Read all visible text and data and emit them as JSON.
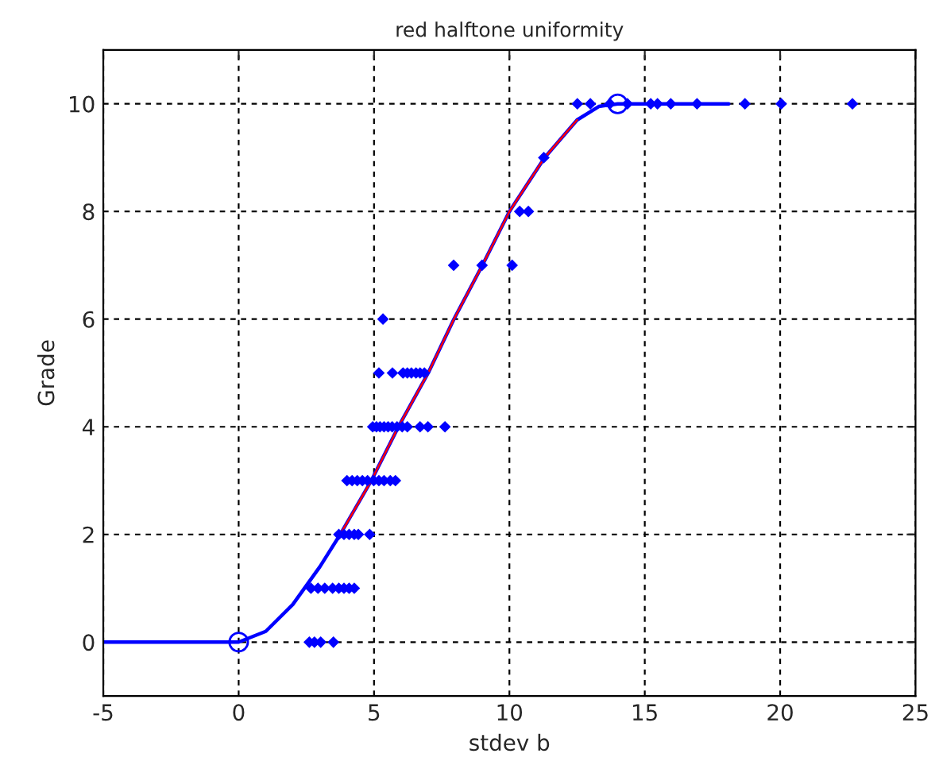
{
  "chart_data": {
    "type": "scatter",
    "title": "red halftone uniformity",
    "xlabel": "stdev b",
    "ylabel": "Grade",
    "xlim": [
      -5,
      25
    ],
    "xticks": [
      -5,
      0,
      5,
      10,
      15,
      20,
      25
    ],
    "ylim": [
      -1,
      11
    ],
    "yticks": [
      0,
      2,
      4,
      6,
      8,
      10
    ],
    "grid": true,
    "series": [
      {
        "type": "line",
        "color": "#0000ff",
        "marker": "none",
        "line_style": "solid",
        "x": [
          -5,
          0,
          1,
          2,
          3,
          3.75,
          4.9,
          5.9,
          7,
          7.95,
          9,
          10,
          11.3,
          12.5,
          13.3,
          14,
          18.1
        ],
        "values": [
          0,
          0,
          0.2,
          0.7,
          1.4,
          2,
          3,
          4,
          5,
          6,
          7,
          8,
          9,
          9.7,
          9.95,
          10,
          10
        ]
      },
      {
        "type": "line",
        "color": "#ff0000",
        "marker": "none",
        "line_style": "solid",
        "x": [
          3.75,
          4.9,
          5.9,
          7,
          7.95,
          9,
          10,
          11.3,
          12.5
        ],
        "values": [
          2,
          3,
          4,
          5,
          6,
          7,
          8,
          9,
          9.7
        ]
      },
      {
        "color": "#0000ff",
        "marker": "diamond",
        "x": [
          12.51,
          12.99,
          13.71,
          14.36,
          15.22,
          15.47,
          15.96,
          16.93,
          18.7,
          20.04,
          22.67,
          11.27,
          10.38,
          10.7,
          7.94,
          8.99,
          10.1,
          5.33,
          5.18,
          5.68,
          6.07,
          6.23,
          6.38,
          6.55,
          6.7,
          6.86,
          4.95,
          5.09,
          5.22,
          5.37,
          5.52,
          5.67,
          5.85,
          6.04,
          6.23,
          6.7,
          6.99,
          7.62,
          4.0,
          4.19,
          4.38,
          4.57,
          4.76,
          4.99,
          5.18,
          5.37,
          5.6,
          5.79,
          3.7,
          3.89,
          4.08,
          4.27,
          4.42,
          4.84,
          2.67,
          2.93,
          3.18,
          3.47,
          3.7,
          3.89,
          4.08,
          4.27,
          2.61,
          2.8,
          3.03,
          3.5
        ],
        "values": [
          10,
          10,
          10,
          10,
          10,
          10,
          10,
          10,
          10,
          10,
          10,
          9,
          8,
          8,
          7,
          7,
          7,
          6,
          5,
          5,
          5,
          5,
          5,
          5,
          5,
          5,
          4,
          4,
          4,
          4,
          4,
          4,
          4,
          4,
          4,
          4,
          4,
          4,
          3,
          3,
          3,
          3,
          3,
          3,
          3,
          3,
          3,
          3,
          2,
          2,
          2,
          2,
          2,
          2,
          1,
          1,
          1,
          1,
          1,
          1,
          1,
          1,
          0,
          0,
          0,
          0
        ]
      },
      {
        "color": "#0000ff",
        "marker": "circle",
        "x": [
          0,
          14
        ],
        "values": [
          0,
          10
        ]
      }
    ]
  }
}
